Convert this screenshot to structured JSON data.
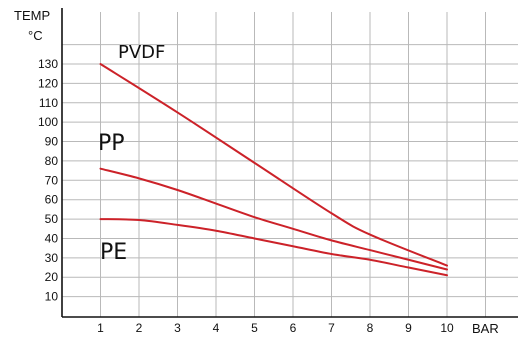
{
  "chart_data": {
    "type": "line",
    "ylabel": "TEMP",
    "yunit": "°C",
    "xlabel": "BAR",
    "xlim": [
      0,
      11.1
    ],
    "ylim": [
      0,
      140
    ],
    "x_ticks": [
      1,
      2,
      3,
      4,
      5,
      6,
      7,
      8,
      9,
      10
    ],
    "y_ticks": [
      10,
      20,
      30,
      40,
      50,
      60,
      70,
      80,
      90,
      100,
      110,
      120,
      130
    ],
    "grid": true,
    "line_color": "#cc2229",
    "series": [
      {
        "name": "PVDF",
        "x": [
          1,
          3,
          5,
          7,
          8,
          10
        ],
        "y": [
          130,
          105,
          79,
          53,
          42,
          26
        ]
      },
      {
        "name": "PP",
        "x": [
          1,
          2,
          3,
          4,
          5,
          6,
          7,
          8,
          9,
          10
        ],
        "y": [
          76,
          71,
          65,
          58,
          51,
          45,
          39,
          34,
          29,
          24
        ]
      },
      {
        "name": "PE",
        "x": [
          1,
          2,
          3,
          4,
          5,
          6,
          7,
          8,
          9,
          10
        ],
        "y": [
          50,
          49.5,
          47,
          44,
          40,
          36,
          32,
          29,
          25,
          21
        ]
      }
    ]
  }
}
